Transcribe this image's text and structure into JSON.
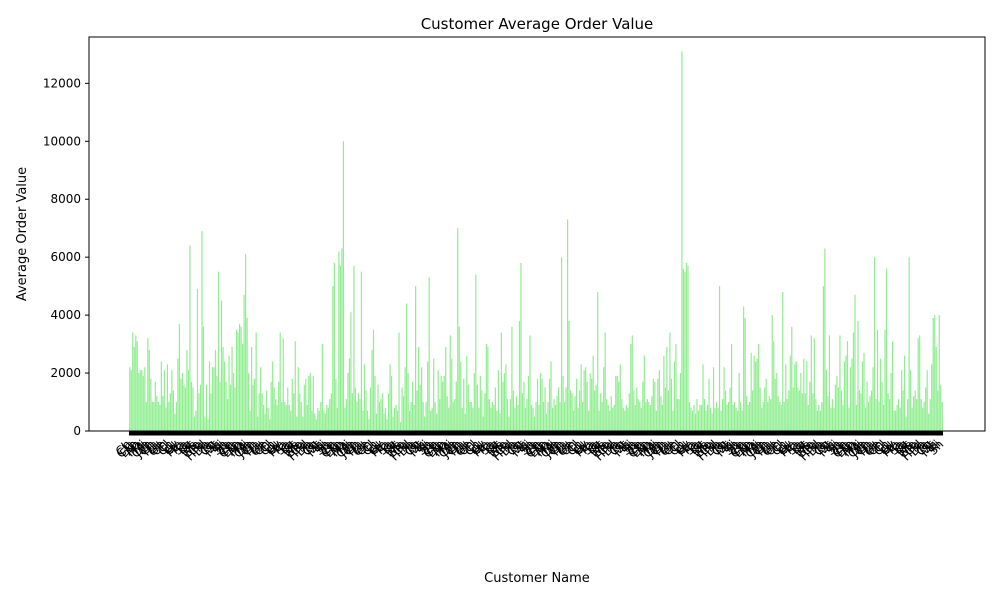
{
  "chart_data": {
    "type": "bar",
    "title": "Customer Average Order Value",
    "xlabel": "Customer Name",
    "ylabel": "Average Order Value",
    "ylim": [
      0,
      13600
    ],
    "yticks": [
      0,
      2000,
      4000,
      6000,
      8000,
      10000,
      12000
    ],
    "bar_color": "#90ee90",
    "grid": false,
    "legend": "none",
    "visible_category_labels": [
      "Ch",
      "Cla",
      "Elb",
      "An",
      "Ma",
      "Mi",
      "Cle",
      "Joh",
      "Ch",
      "Ha",
      "Lu",
      "Ge",
      "Ch",
      "Cl",
      "Ch",
      "Lu",
      "Ev",
      "Ma",
      "Pa",
      "Sa",
      "La",
      "St",
      "Ma",
      "Mo",
      "Ca",
      "Hild",
      "Do",
      "Ja",
      "Ch",
      "St",
      "Ma",
      "Ki",
      "Sh",
      "Ja"
    ],
    "categories_count": 500,
    "values": [
      2200,
      2100,
      3400,
      2900,
      3300,
      3100,
      2000,
      2100,
      2100,
      1900,
      2200,
      1000,
      3200,
      2800,
      1800,
      1000,
      1000,
      1700,
      1200,
      1000,
      900,
      2400,
      1200,
      2100,
      800,
      2300,
      1000,
      1300,
      2100,
      1400,
      600,
      1000,
      2500,
      3700,
      1800,
      2000,
      1600,
      1500,
      2800,
      2100,
      6400,
      1700,
      1500,
      500,
      700,
      4900,
      1300,
      1600,
      6900,
      3600,
      500,
      1600,
      400,
      2400,
      1300,
      2200,
      2200,
      2800,
      1900,
      5500,
      1700,
      4500,
      2900,
      2400,
      1700,
      1100,
      2600,
      1600,
      2900,
      2000,
      1500,
      3500,
      3400,
      3700,
      3600,
      3000,
      4700,
      6100,
      3900,
      2000,
      700,
      2900,
      1600,
      1800,
      3400,
      500,
      1300,
      2200,
      1300,
      900,
      600,
      1400,
      800,
      400,
      1700,
      2400,
      1500,
      1100,
      900,
      1700,
      3400,
      1000,
      3200,
      1000,
      900,
      1500,
      900,
      700,
      1800,
      1300,
      3100,
      500,
      2200,
      1300,
      1000,
      500,
      1600,
      1800,
      900,
      1900,
      2000,
      700,
      1900,
      600,
      400,
      800,
      700,
      1000,
      3000,
      700,
      600,
      900,
      800,
      1100,
      1300,
      5000,
      5800,
      1800,
      800,
      6200,
      5700,
      6300,
      10000,
      800,
      1100,
      2000,
      2500,
      4100,
      1300,
      5700,
      1500,
      1000,
      1300,
      1100,
      5500,
      700,
      2300,
      1400,
      700,
      400,
      1500,
      2800,
      3500,
      1900,
      600,
      1600,
      1000,
      1100,
      1300,
      600,
      800,
      400,
      1300,
      2300,
      1900,
      500,
      800,
      900,
      700,
      3400,
      300,
      1500,
      1200,
      2200,
      4400,
      2000,
      700,
      1000,
      1700,
      900,
      5000,
      1400,
      2900,
      1600,
      2200,
      1000,
      500,
      1000,
      2400,
      5300,
      700,
      800,
      2500,
      1000,
      600,
      2100,
      1100,
      1900,
      1700,
      1900,
      2900,
      1200,
      800,
      3300,
      2500,
      1000,
      1100,
      1700,
      7000,
      3600,
      2400,
      800,
      1800,
      600,
      2600,
      1600,
      1000,
      1000,
      800,
      2000,
      5400,
      1600,
      800,
      1900,
      1400,
      500,
      1300,
      3000,
      2900,
      1100,
      800,
      1000,
      900,
      1500,
      700,
      2100,
      600,
      3400,
      1700,
      2000,
      2300,
      1100,
      500,
      1100,
      3600,
      1400,
      800,
      1200,
      900,
      3800,
      5800,
      1300,
      1700,
      800,
      1100,
      1900,
      3300,
      900,
      800,
      500,
      1000,
      1800,
      900,
      2000,
      1800,
      1000,
      1500,
      600,
      1000,
      1800,
      2400,
      800,
      1100,
      900,
      1200,
      1500,
      1000,
      6000,
      1900,
      1000,
      1500,
      7300,
      3800,
      1400,
      1300,
      700,
      1200,
      1800,
      800,
      1400,
      2300,
      1000,
      2100,
      2200,
      1700,
      700,
      2000,
      1800,
      2600,
      1400,
      1600,
      4800,
      700,
      1300,
      1000,
      2200,
      3400,
      1100,
      900,
      700,
      1200,
      800,
      900,
      1900,
      1900,
      1700,
      2300,
      1100,
      800,
      700,
      900,
      800,
      1300,
      3000,
      3300,
      1400,
      900,
      1500,
      1100,
      1000,
      800,
      1700,
      2600,
      1000,
      1100,
      1000,
      900,
      1200,
      1800,
      1700,
      700,
      1800,
      2100,
      1200,
      900,
      2600,
      1500,
      2900,
      1400,
      3400,
      1800,
      700,
      2400,
      3000,
      1100,
      1100,
      2000,
      13100,
      5600,
      5500,
      5800,
      5700,
      1000,
      800,
      700,
      900,
      600,
      1100,
      700,
      900,
      900,
      2300,
      1100,
      700,
      900,
      1800,
      800,
      600,
      2200,
      800,
      1000,
      800,
      5000,
      700,
      1100,
      2200,
      1400,
      900,
      1000,
      1500,
      3000,
      900,
      1000,
      800,
      700,
      2000,
      1000,
      700,
      4300,
      3900,
      1200,
      900,
      1000,
      2700,
      1400,
      2600,
      2400,
      2500,
      3000,
      1500,
      800,
      1000,
      1500,
      1800,
      1000,
      1200,
      1100,
      4000,
      3100,
      1800,
      2000,
      1200,
      1000,
      900,
      4800,
      1000,
      2300,
      1100,
      1400,
      2600,
      3600,
      1500,
      2300,
      2400,
      1500,
      1400,
      2000,
      1300,
      2500,
      1300,
      2400,
      900,
      1700,
      3300,
      1300,
      3200,
      1100,
      700,
      900,
      700,
      1000,
      5000,
      6300,
      2100,
      1200,
      3300,
      800,
      1100,
      800,
      1600,
      1900,
      1500,
      3300,
      1400,
      900,
      2400,
      2600,
      3100,
      800,
      2200,
      2500,
      3400,
      4700,
      900,
      3800,
      1400,
      1300,
      2400,
      2700,
      800,
      1700,
      1000,
      1200,
      1400,
      2200,
      6000,
      1100,
      3500,
      1000,
      2500,
      1700,
      900,
      3500,
      5600,
      1300,
      1100,
      2000,
      3100,
      700,
      700,
      900,
      1100,
      800,
      2100,
      1400,
      2600,
      500,
      1100,
      6000,
      2100,
      800,
      1200,
      1400,
      1100,
      3200,
      3300,
      1100,
      800,
      1000,
      1500,
      2100,
      600,
      1100,
      2300,
      3900,
      4000,
      2900,
      1400,
      4000,
      1600,
      1000
    ]
  }
}
